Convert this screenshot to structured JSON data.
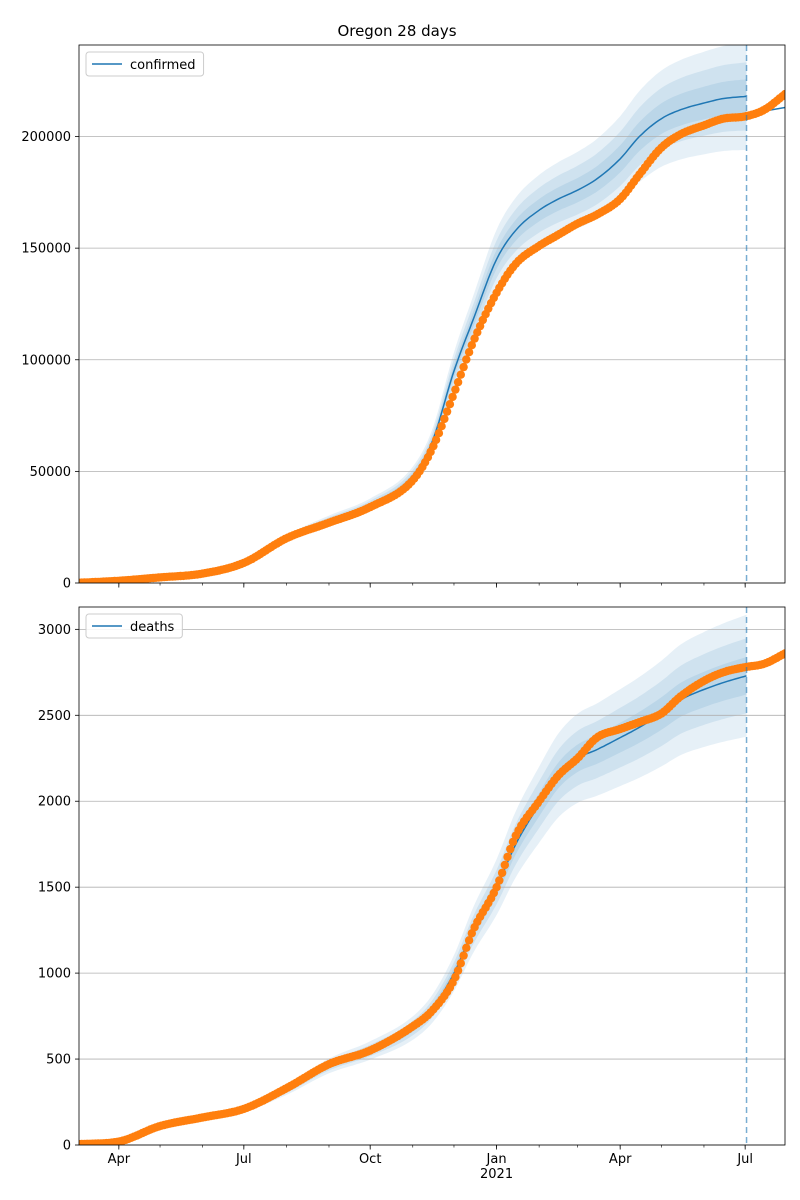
{
  "figure": {
    "title": "Oregon 28 days"
  },
  "colors": {
    "model_line": "#1f77b4",
    "band": "#1f77b4",
    "observed": "#ff7f0e",
    "vline": "#1f77b4",
    "grid": "#b0b0b0"
  },
  "chart_data": [
    {
      "type": "line",
      "name": "confirmed",
      "legend": {
        "label": "confirmed",
        "placement": "top-left"
      },
      "x_tick_labels": [
        "Apr",
        "Jul",
        "Oct",
        "Jan",
        "Apr",
        "Jul"
      ],
      "x_tick_dates": [
        "2020-04-01",
        "2020-07-01",
        "2020-10-01",
        "2021-01-01",
        "2021-04-01",
        "2021-07-01"
      ],
      "x_sublabel": {
        "text": "2021",
        "under": "2021-01-01"
      },
      "x_range": [
        "2020-03-03",
        "2021-07-30"
      ],
      "y_range": [
        0,
        241000
      ],
      "y_ticks": [
        0,
        50000,
        100000,
        150000,
        200000
      ],
      "y_tick_labels": [
        "0",
        "50000",
        "100000",
        "150000",
        "200000"
      ],
      "grid": "y",
      "forecast_start": "2021-07-02",
      "band_halfwidths": [
        0.11,
        0.07,
        0.035
      ],
      "model": {
        "dates": [
          "2020-03-03",
          "2020-04-01",
          "2020-05-01",
          "2020-06-01",
          "2020-07-01",
          "2020-08-01",
          "2020-09-01",
          "2020-10-01",
          "2020-11-01",
          "2020-11-15",
          "2020-12-01",
          "2020-12-15",
          "2021-01-01",
          "2021-01-15",
          "2021-02-01",
          "2021-02-15",
          "2021-03-01",
          "2021-03-15",
          "2021-04-01",
          "2021-04-15",
          "2021-05-01",
          "2021-05-15",
          "2021-06-01",
          "2021-06-15",
          "2021-07-02"
        ],
        "values": [
          100,
          1000,
          2500,
          4500,
          9000,
          20000,
          28000,
          35000,
          48000,
          63000,
          95000,
          118000,
          145000,
          158000,
          167000,
          172000,
          176000,
          181000,
          190000,
          200000,
          208000,
          212000,
          215000,
          217000,
          218000
        ]
      },
      "observed": {
        "dates": [
          "2020-03-03",
          "2020-04-01",
          "2020-05-01",
          "2020-06-01",
          "2020-07-01",
          "2020-08-01",
          "2020-09-01",
          "2020-10-01",
          "2020-11-01",
          "2020-11-15",
          "2020-12-01",
          "2020-12-15",
          "2021-01-01",
          "2021-01-15",
          "2021-02-01",
          "2021-02-15",
          "2021-03-01",
          "2021-03-15",
          "2021-04-01",
          "2021-04-15",
          "2021-05-01",
          "2021-05-15",
          "2021-06-01",
          "2021-06-15",
          "2021-07-01",
          "2021-07-15",
          "2021-07-30"
        ],
        "values": [
          100,
          1000,
          2500,
          4200,
          9000,
          20000,
          27000,
          34000,
          46000,
          60000,
          85000,
          108000,
          130000,
          143000,
          151000,
          156000,
          161000,
          165000,
          172000,
          183000,
          195000,
          201000,
          205000,
          208000,
          209000,
          212000,
          219000
        ]
      },
      "post": {
        "dates": [
          "2021-07-02",
          "2021-07-30"
        ],
        "values": [
          210000,
          213000
        ]
      }
    },
    {
      "type": "line",
      "name": "deaths",
      "legend": {
        "label": "deaths",
        "placement": "top-left"
      },
      "x_tick_labels": [
        "Apr",
        "Jul",
        "Oct",
        "Jan",
        "Apr",
        "Jul"
      ],
      "x_tick_dates": [
        "2020-04-01",
        "2020-07-01",
        "2020-10-01",
        "2021-01-01",
        "2021-04-01",
        "2021-07-01"
      ],
      "x_sublabel": {
        "text": "2021",
        "under": "2021-01-01"
      },
      "x_range": [
        "2020-03-03",
        "2021-07-30"
      ],
      "y_range": [
        0,
        3130
      ],
      "y_ticks": [
        0,
        500,
        1000,
        1500,
        2000,
        2500,
        3000
      ],
      "y_tick_labels": [
        "0",
        "500",
        "1000",
        "1500",
        "2000",
        "2500",
        "3000"
      ],
      "grid": "y",
      "forecast_start": "2021-07-02",
      "band_halfwidths": [
        0.13,
        0.08,
        0.04
      ],
      "model": {
        "dates": [
          "2020-03-03",
          "2020-04-01",
          "2020-05-01",
          "2020-06-01",
          "2020-07-01",
          "2020-08-01",
          "2020-09-01",
          "2020-10-01",
          "2020-11-01",
          "2020-11-15",
          "2020-12-01",
          "2020-12-15",
          "2021-01-01",
          "2021-01-15",
          "2021-02-01",
          "2021-02-15",
          "2021-03-01",
          "2021-03-15",
          "2021-04-01",
          "2021-04-15",
          "2021-05-01",
          "2021-05-15",
          "2021-06-01",
          "2021-06-15",
          "2021-07-02"
        ],
        "values": [
          5,
          20,
          110,
          160,
          210,
          320,
          460,
          550,
          680,
          790,
          1000,
          1250,
          1500,
          1750,
          1980,
          2150,
          2250,
          2300,
          2370,
          2430,
          2510,
          2590,
          2650,
          2690,
          2730
        ]
      },
      "observed": {
        "dates": [
          "2020-03-03",
          "2020-04-01",
          "2020-05-01",
          "2020-06-01",
          "2020-07-01",
          "2020-08-01",
          "2020-09-01",
          "2020-10-01",
          "2020-11-01",
          "2020-11-15",
          "2020-12-01",
          "2020-12-15",
          "2021-01-01",
          "2021-01-15",
          "2021-02-01",
          "2021-02-15",
          "2021-03-01",
          "2021-03-15",
          "2021-04-01",
          "2021-04-15",
          "2021-05-01",
          "2021-05-15",
          "2021-06-01",
          "2021-06-15",
          "2021-07-01",
          "2021-07-15",
          "2021-07-30"
        ],
        "values": [
          5,
          20,
          110,
          160,
          210,
          330,
          470,
          550,
          690,
          780,
          960,
          1250,
          1500,
          1800,
          2000,
          2150,
          2250,
          2370,
          2420,
          2460,
          2510,
          2610,
          2700,
          2750,
          2780,
          2800,
          2860
        ]
      },
      "post": {
        "dates": [
          "2021-07-02",
          "2021-07-30"
        ],
        "values": [
          2780,
          2860
        ]
      }
    }
  ]
}
